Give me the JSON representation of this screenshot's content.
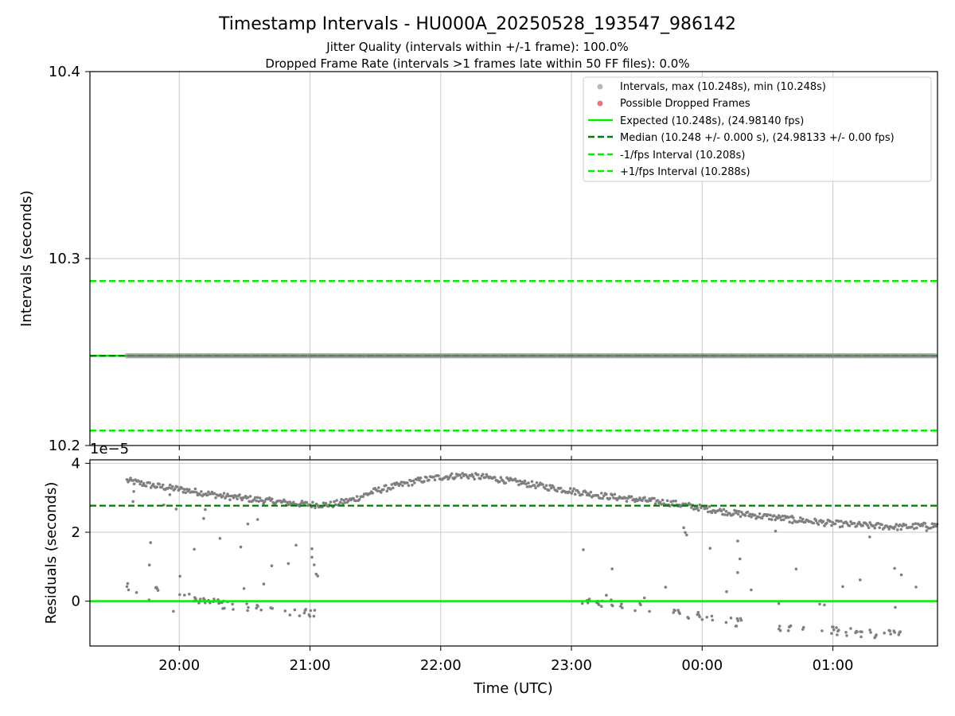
{
  "header": {
    "title": "Timestamp Intervals - HU000A_20250528_193547_986142",
    "subtitle1": "Jitter Quality (intervals within +/-1 frame): 100.0%",
    "subtitle2": "Dropped Frame Rate (intervals >1 frames late within 50 FF files): 0.0%"
  },
  "colors": {
    "points": "#808080",
    "dropped": "#f05a5a",
    "expected": "#00ee00",
    "median": "#007a00",
    "bound": "#00ee00",
    "grid": "#c8c8c8"
  },
  "chart_data": [
    {
      "type": "scatter",
      "ylabel": "Intervals (seconds)",
      "xlim": [
        "19:19",
        "01:48"
      ],
      "ylim": [
        10.2,
        10.4
      ],
      "yticks": [
        10.2,
        10.3,
        10.4
      ],
      "ytick_labels": [
        "10.2",
        "10.3",
        "10.4"
      ],
      "xticks": [
        "20:00",
        "21:00",
        "22:00",
        "23:00",
        "00:00",
        "01:00"
      ],
      "grid": true,
      "legend_position": "top-right",
      "legend": [
        "Intervals, max (10.248s), min (10.248s)",
        "Possible Dropped Frames",
        "Expected (10.248s), (24.98140 fps)",
        "Median (10.248 +/- 0.000 s), (24.98133 +/- 0.00 fps)",
        "-1/fps Interval (10.208s)",
        "+1/fps Interval (10.288s)"
      ],
      "series": [
        {
          "name": "Intervals, max (10.248s), min (10.248s)",
          "kind": "points",
          "x_start": "19:36",
          "x_end": "01:48",
          "value": 10.248
        },
        {
          "name": "Expected (10.248s), (24.98140 fps)",
          "kind": "hline",
          "value": 10.248
        },
        {
          "name": "Median (10.248 +/- 0.000 s), (24.98133 +/- 0.00 fps)",
          "kind": "hline",
          "value": 10.248
        },
        {
          "name": "-1/fps Interval (10.208s)",
          "kind": "hline",
          "value": 10.208
        },
        {
          "name": "+1/fps Interval (10.288s)",
          "kind": "hline",
          "value": 10.288
        }
      ]
    },
    {
      "type": "scatter",
      "ylabel": "Residuals (seconds)",
      "xlabel": "Time (UTC)",
      "scale_label": "1e−5",
      "xlim": [
        "19:19",
        "01:48"
      ],
      "ylim": [
        -1.3,
        4.1
      ],
      "yticks": [
        0,
        2,
        4
      ],
      "ytick_labels": [
        "0",
        "2",
        "4"
      ],
      "xticks": [
        "20:00",
        "21:00",
        "22:00",
        "23:00",
        "00:00",
        "01:00"
      ],
      "grid": true,
      "expected_residual": 0,
      "median_residual": 2.77,
      "main_band": [
        [
          "19:36",
          3.5
        ],
        [
          "19:48",
          3.35
        ],
        [
          "20:00",
          3.25
        ],
        [
          "20:10",
          3.15
        ],
        [
          "20:20",
          3.05
        ],
        [
          "20:35",
          2.95
        ],
        [
          "20:50",
          2.85
        ],
        [
          "21:00",
          2.8
        ],
        [
          "21:10",
          2.8
        ],
        [
          "21:20",
          2.95
        ],
        [
          "21:30",
          3.2
        ],
        [
          "21:40",
          3.35
        ],
        [
          "21:50",
          3.5
        ],
        [
          "22:00",
          3.6
        ],
        [
          "22:10",
          3.65
        ],
        [
          "22:20",
          3.6
        ],
        [
          "22:30",
          3.5
        ],
        [
          "22:40",
          3.4
        ],
        [
          "22:50",
          3.3
        ],
        [
          "23:00",
          3.2
        ],
        [
          "23:15",
          3.05
        ],
        [
          "23:30",
          2.95
        ],
        [
          "23:45",
          2.85
        ],
        [
          "00:00",
          2.7
        ],
        [
          "00:15",
          2.55
        ],
        [
          "00:30",
          2.45
        ],
        [
          "00:45",
          2.35
        ],
        [
          "01:00",
          2.25
        ],
        [
          "01:15",
          2.2
        ],
        [
          "01:30",
          2.15
        ],
        [
          "01:48",
          2.2
        ]
      ],
      "low_band": [
        [
          "19:36",
          0.4
        ],
        [
          "19:50",
          0.3
        ],
        [
          "20:00",
          0.2
        ],
        [
          "20:10",
          0.05
        ],
        [
          "20:20",
          -0.1
        ],
        [
          "20:35",
          -0.2
        ],
        [
          "20:50",
          -0.3
        ],
        [
          "21:05",
          -0.35
        ],
        [
          "23:05",
          0.05
        ],
        [
          "23:20",
          -0.1
        ],
        [
          "23:35",
          -0.2
        ],
        [
          "23:50",
          -0.35
        ],
        [
          "00:05",
          -0.5
        ],
        [
          "00:20",
          -0.65
        ],
        [
          "00:35",
          -0.75
        ],
        [
          "00:50",
          -0.8
        ],
        [
          "01:05",
          -0.9
        ],
        [
          "01:20",
          -0.95
        ],
        [
          "01:35",
          -0.95
        ]
      ]
    }
  ]
}
